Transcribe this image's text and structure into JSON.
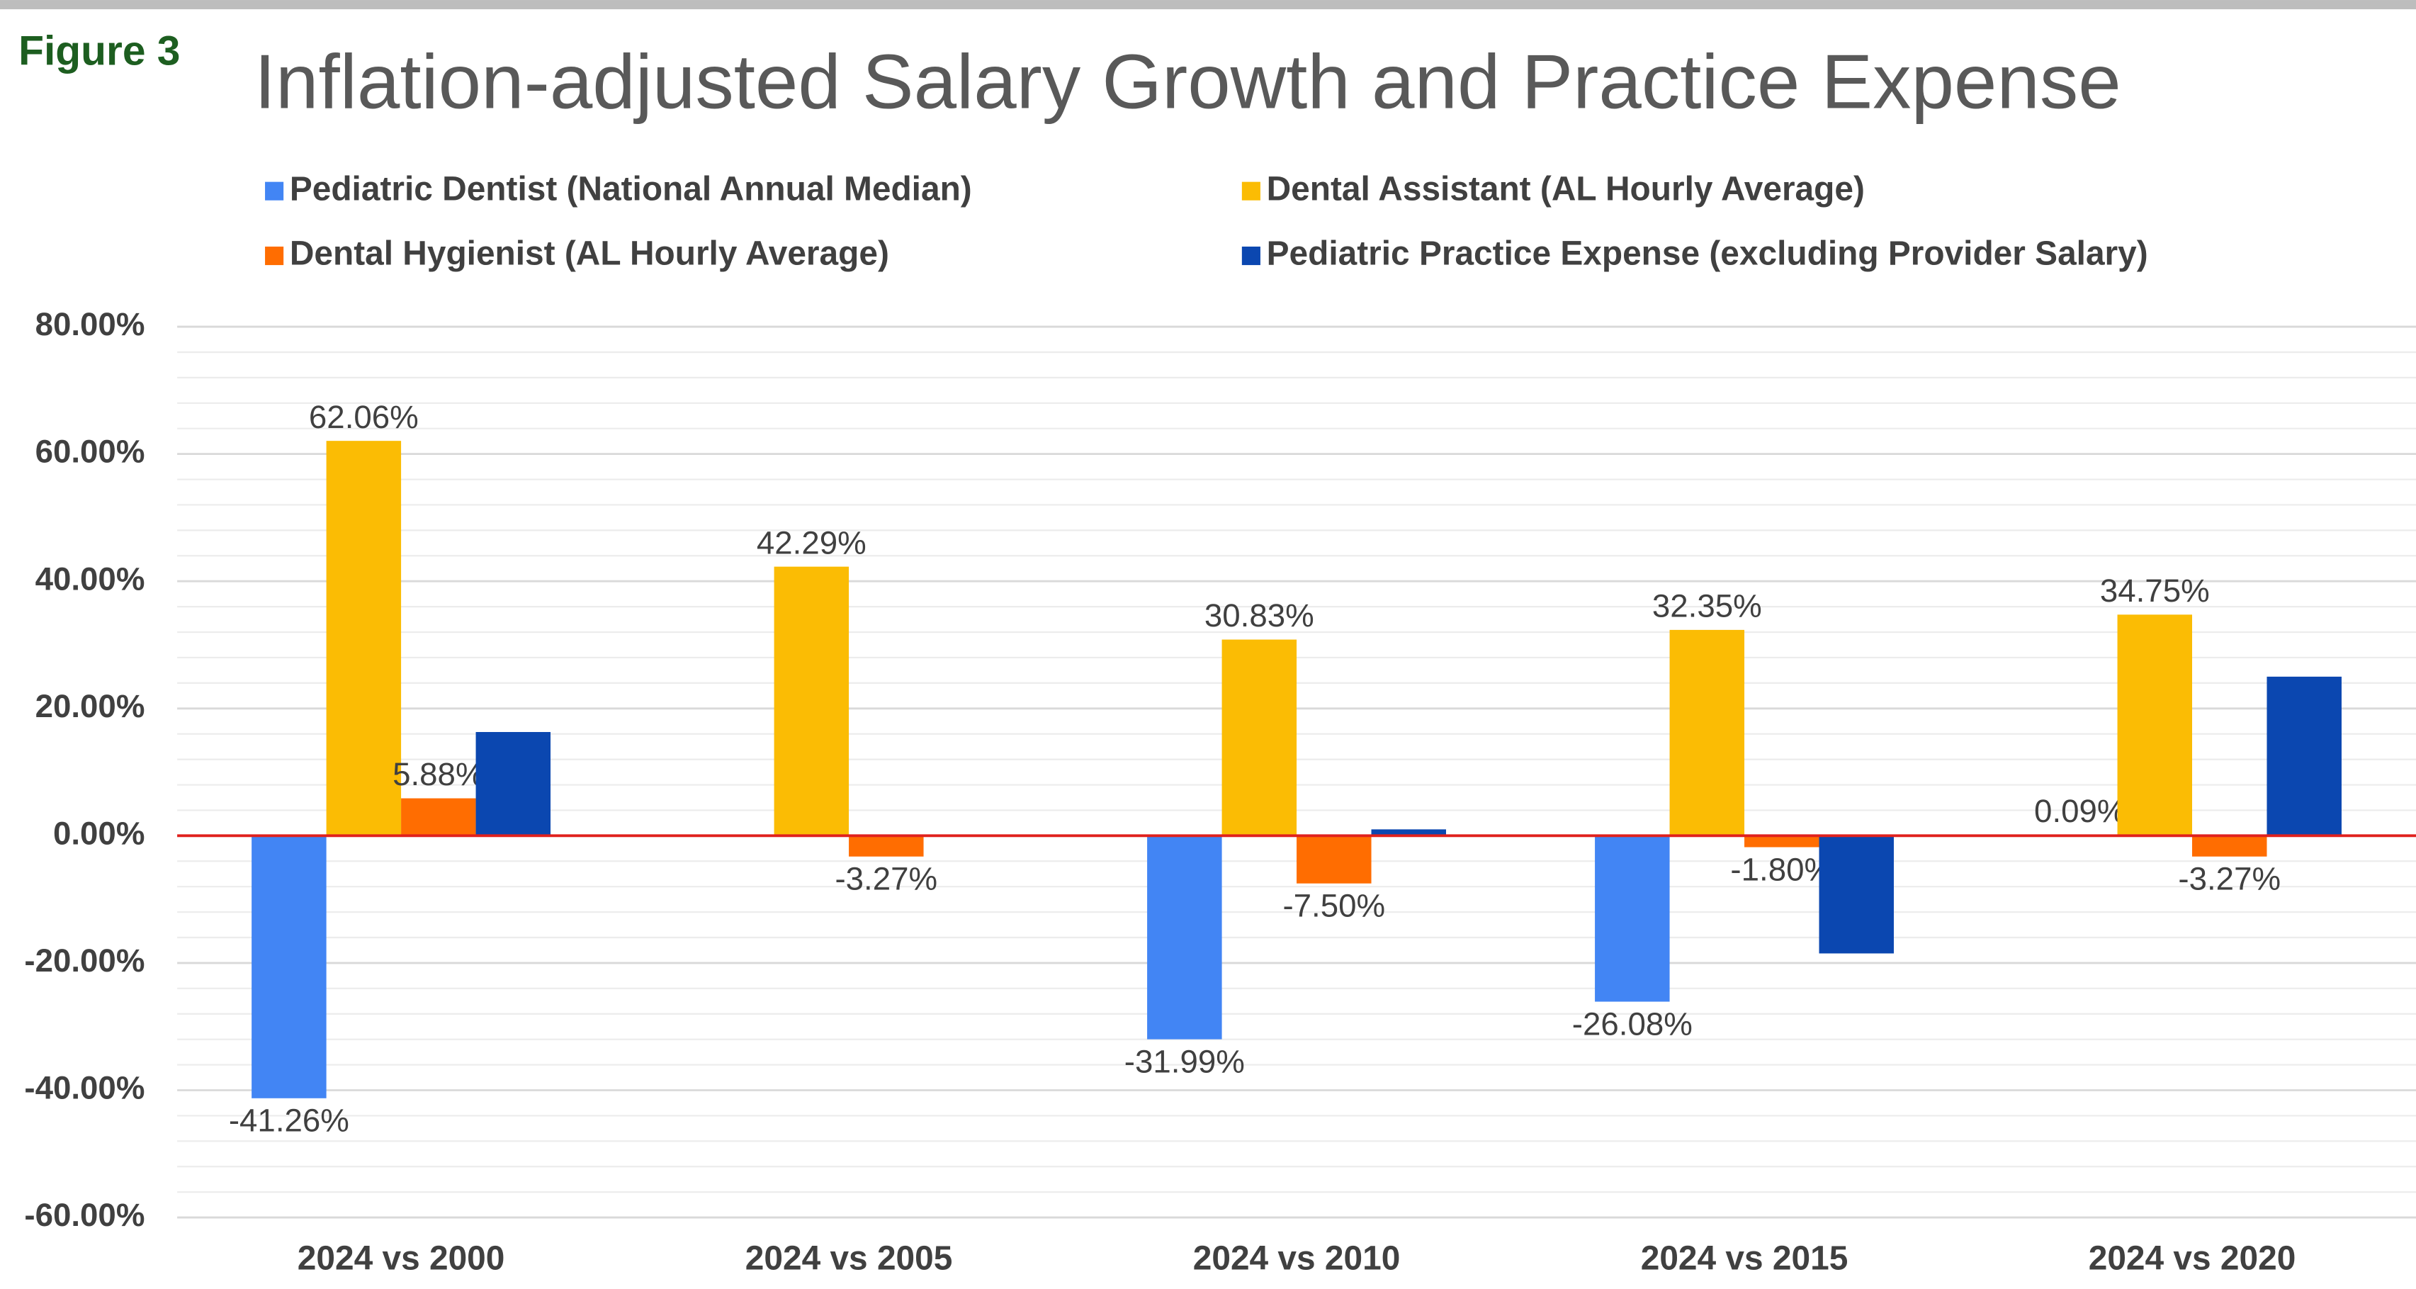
{
  "figure_label": "Figure 3",
  "chart_data": {
    "type": "bar",
    "title": "Inflation-adjusted Salary Growth and Practice Expense",
    "categories": [
      "2024 vs 2000",
      "2024 vs 2005",
      "2024 vs 2010",
      "2024 vs 2015",
      "2024 vs 2020"
    ],
    "series": [
      {
        "name": "Pediatric Dentist (National Annual Median)",
        "color": "#4285f4",
        "values": [
          -41.26,
          null,
          -31.99,
          -26.08,
          0.09
        ],
        "value_labels": [
          "-41.26%",
          null,
          "-31.99%",
          "-26.08%",
          "0.09%"
        ]
      },
      {
        "name": "Dental Assistant (AL Hourly Average)",
        "color": "#fbbc04",
        "values": [
          62.06,
          42.29,
          30.83,
          32.35,
          34.75
        ],
        "value_labels": [
          "62.06%",
          "42.29%",
          "30.83%",
          "32.35%",
          "34.75%"
        ]
      },
      {
        "name": "Dental Hygienist (AL Hourly Average)",
        "color": "#ff6d01",
        "values": [
          5.88,
          -3.27,
          -7.5,
          -1.8,
          -3.27
        ],
        "value_labels": [
          "5.88%",
          "-3.27%",
          "-7.50%",
          "-1.80%",
          "-3.27%"
        ]
      },
      {
        "name": "Pediatric Practice Expense (excluding Provider Salary)",
        "color": "#0b47b0",
        "values": [
          16.3,
          null,
          1.0,
          -18.5,
          25.0
        ]
      }
    ],
    "ylim": [
      -60,
      80
    ],
    "yticks": [
      {
        "value": -60,
        "label": "-60.00%"
      },
      {
        "value": -40,
        "label": "-40.00%"
      },
      {
        "value": -20,
        "label": "-20.00%"
      },
      {
        "value": 0,
        "label": "0.00%"
      },
      {
        "value": 20,
        "label": "20.00%"
      },
      {
        "value": 40,
        "label": "40.00%"
      },
      {
        "value": 60,
        "label": "60.00%"
      },
      {
        "value": 80,
        "label": "80.00%"
      }
    ],
    "grid": true,
    "minor_grid": true,
    "zero_line_color": "#e0211d",
    "legend": "top"
  }
}
